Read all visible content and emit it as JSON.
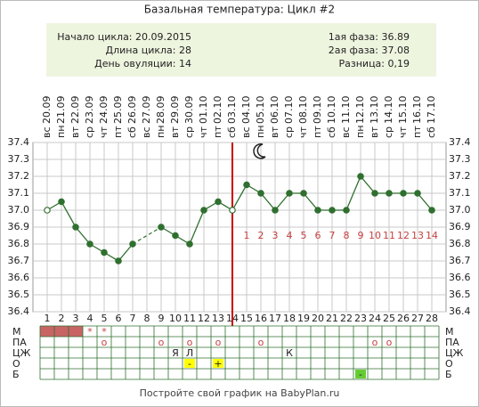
{
  "chart_data": {
    "type": "line",
    "title": "Базальная температура: Цикл #2",
    "info_left": [
      "Начало цикла: 20.09.2015",
      "Длина цикла: 28",
      "День овуляции: 14"
    ],
    "info_right": [
      "1ая фаза: 36.89",
      "2ая фаза: 37.08",
      "Разница: 0,19"
    ],
    "categories": [
      1,
      2,
      3,
      4,
      5,
      6,
      7,
      8,
      9,
      10,
      11,
      12,
      13,
      14,
      15,
      16,
      17,
      18,
      19,
      20,
      21,
      22,
      23,
      24,
      25,
      26,
      27,
      28
    ],
    "dates": [
      "20.09",
      "21.09",
      "22.09",
      "23.09",
      "24.09",
      "25.09",
      "26.09",
      "27.09",
      "28.09",
      "29.09",
      "30.09",
      "01.10",
      "02.10",
      "03.10",
      "04.10",
      "05.10",
      "06.10",
      "07.10",
      "08.10",
      "09.10",
      "10.10",
      "11.10",
      "12.10",
      "13.10",
      "14.10",
      "15.10",
      "16.10",
      "17.10"
    ],
    "weekdays": [
      "вс",
      "пн",
      "вт",
      "ср",
      "чт",
      "пт",
      "сб",
      "вс",
      "пн",
      "вт",
      "ср",
      "чт",
      "пт",
      "сб",
      "вс",
      "пн",
      "вт",
      "ср",
      "чт",
      "пт",
      "сб",
      "вс",
      "пн",
      "вт",
      "ср",
      "чт",
      "пт",
      "сб"
    ],
    "series": [
      {
        "name": "Температура",
        "color": "#2f6f2f",
        "values": [
          37.0,
          37.05,
          36.9,
          36.8,
          36.75,
          36.7,
          36.8,
          null,
          36.9,
          36.85,
          36.8,
          37.0,
          37.05,
          37.0,
          37.15,
          37.1,
          37.0,
          37.1,
          37.1,
          37.0,
          37.0,
          37.0,
          37.2,
          37.1,
          37.1,
          37.1,
          37.1,
          37.0
        ]
      }
    ],
    "hollow_days": [
      1,
      14
    ],
    "phase_days": [
      null,
      null,
      null,
      null,
      null,
      null,
      null,
      null,
      null,
      null,
      null,
      null,
      null,
      null,
      1,
      2,
      3,
      4,
      5,
      6,
      7,
      8,
      9,
      10,
      11,
      12,
      13,
      14
    ],
    "ovulation_day": 14,
    "moon_day": 16,
    "ylim": [
      36.4,
      37.4
    ],
    "yticks": [
      36.4,
      36.5,
      36.6,
      36.7,
      36.8,
      36.9,
      {
        "value": 37,
        "label": "37.0"
      },
      37.1,
      37.2,
      37.3,
      37.4
    ],
    "grid": true,
    "table": [
      {
        "name": "М",
        "cells": [
          {
            "fill": "#c86464"
          },
          {
            "fill": "#c86464"
          },
          {
            "fill": "#c86464"
          },
          "*",
          "*",
          null,
          null,
          null,
          null,
          null,
          null,
          null,
          null,
          null,
          null,
          null,
          null,
          null,
          null,
          null,
          null,
          null,
          null,
          null,
          null,
          null,
          null,
          null
        ]
      },
      {
        "name": "ПА",
        "cells": [
          null,
          null,
          null,
          null,
          "o",
          null,
          null,
          null,
          "o",
          null,
          "o",
          null,
          "o",
          null,
          null,
          "o",
          null,
          null,
          null,
          null,
          null,
          null,
          null,
          "o",
          "o",
          null,
          null,
          null
        ]
      },
      {
        "name": "ЦЖ",
        "cells": [
          null,
          null,
          null,
          null,
          null,
          null,
          null,
          null,
          null,
          "Я",
          "Л",
          null,
          null,
          null,
          null,
          null,
          null,
          "К",
          null,
          null,
          null,
          null,
          null,
          null,
          null,
          null,
          null,
          null
        ]
      },
      {
        "name": "О",
        "cells": [
          null,
          null,
          null,
          null,
          null,
          null,
          null,
          null,
          null,
          null,
          {
            "text": "-",
            "fill": "#ffff00"
          },
          null,
          {
            "text": "+",
            "fill": "#ffff00"
          },
          null,
          null,
          null,
          null,
          null,
          null,
          null,
          null,
          null,
          null,
          null,
          null,
          null,
          null,
          null
        ]
      },
      {
        "name": "Б",
        "cells": [
          null,
          null,
          null,
          null,
          null,
          null,
          null,
          null,
          null,
          null,
          null,
          null,
          null,
          null,
          null,
          null,
          null,
          null,
          null,
          null,
          null,
          null,
          {
            "text": "-",
            "fill": "#66cc33"
          },
          null,
          null,
          null,
          null,
          null
        ]
      }
    ],
    "footer": "Постройте свой график на BabyPlan.ru"
  }
}
